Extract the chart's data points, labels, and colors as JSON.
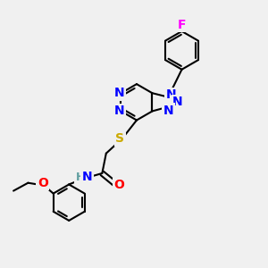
{
  "background_color": "#f0f0f0",
  "atom_colors": {
    "C": "#000000",
    "N": "#0000ff",
    "O": "#ff0000",
    "S": "#ccaa00",
    "F": "#ff00ff",
    "H": "#5f9ea0"
  },
  "bond_color": "#000000",
  "bond_lw": 1.5,
  "font_size": 10,
  "dbl_sep": 0.09
}
